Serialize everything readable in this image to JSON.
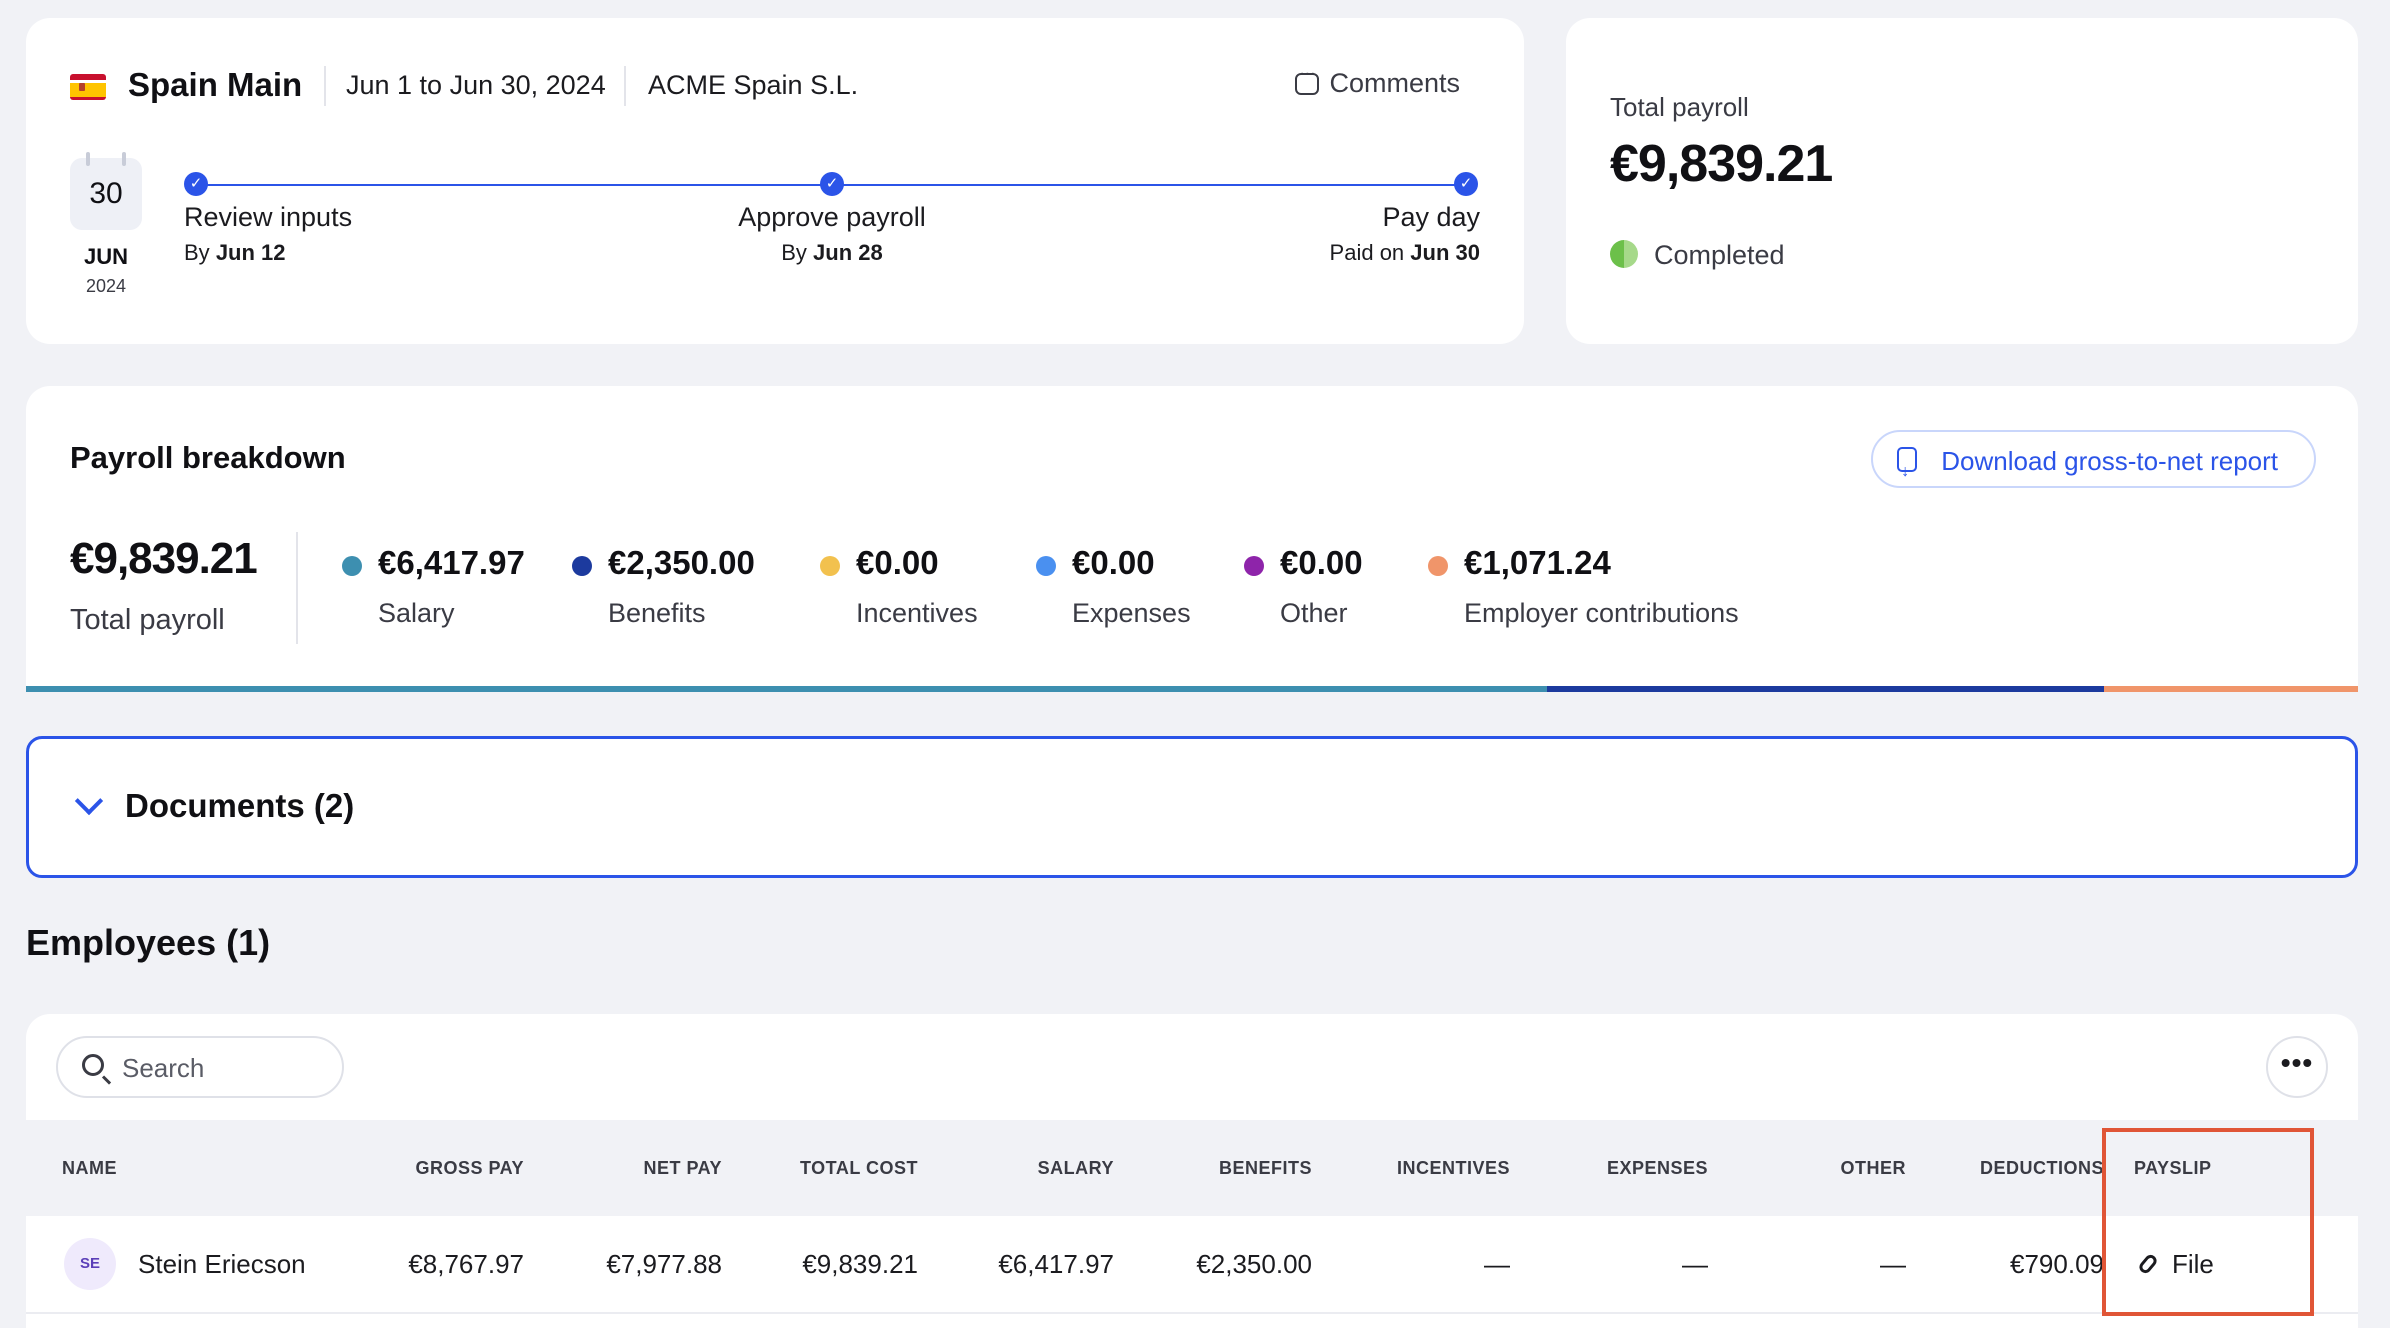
{
  "header": {
    "title": "Spain Main",
    "period": "Jun 1 to Jun 30, 2024",
    "entity": "ACME Spain S.L.",
    "comments_label": "Comments"
  },
  "calendar": {
    "day": "30",
    "month": "JUN",
    "year": "2024"
  },
  "steps": [
    {
      "label": "Review inputs",
      "sub_prefix": "By",
      "sub_date": "Jun 12"
    },
    {
      "label": "Approve payroll",
      "sub_prefix": "By",
      "sub_date": "Jun 28"
    },
    {
      "label": "Pay day",
      "sub_prefix": "Paid on",
      "sub_date": "Jun 30"
    }
  ],
  "total_card": {
    "label": "Total payroll",
    "value": "€9,839.21",
    "status": "Completed"
  },
  "breakdown": {
    "title": "Payroll breakdown",
    "download_label": "Download gross-to-net report",
    "total_value": "€9,839.21",
    "total_label": "Total payroll",
    "items": [
      {
        "value": "€6,417.97",
        "label": "Salary",
        "color": "#3d8fb0"
      },
      {
        "value": "€2,350.00",
        "label": "Benefits",
        "color": "#1c3a9e"
      },
      {
        "value": "€0.00",
        "label": "Incentives",
        "color": "#f2c14e"
      },
      {
        "value": "€0.00",
        "label": "Expenses",
        "color": "#4a90f0"
      },
      {
        "value": "€0.00",
        "label": "Other",
        "color": "#8e24aa"
      },
      {
        "value": "€1,071.24",
        "label": "Employer contributions",
        "color": "#f0956a"
      }
    ]
  },
  "documents": {
    "title": "Documents (2)"
  },
  "employees": {
    "title": "Employees (1)",
    "search_placeholder": "Search",
    "more_label": "•••",
    "columns": [
      "NAME",
      "GROSS PAY",
      "NET PAY",
      "TOTAL COST",
      "SALARY",
      "BENEFITS",
      "INCENTIVES",
      "EXPENSES",
      "OTHER",
      "DEDUCTIONS",
      "PAYSLIP"
    ],
    "rows": [
      {
        "initials": "SE",
        "name": "Stein Eriecson",
        "gross_pay": "€8,767.97",
        "net_pay": "€7,977.88",
        "total_cost": "€9,839.21",
        "salary": "€6,417.97",
        "benefits": "€2,350.00",
        "incentives": "—",
        "expenses": "—",
        "other": "—",
        "deductions": "€790.09",
        "payslip": "File"
      }
    ]
  }
}
